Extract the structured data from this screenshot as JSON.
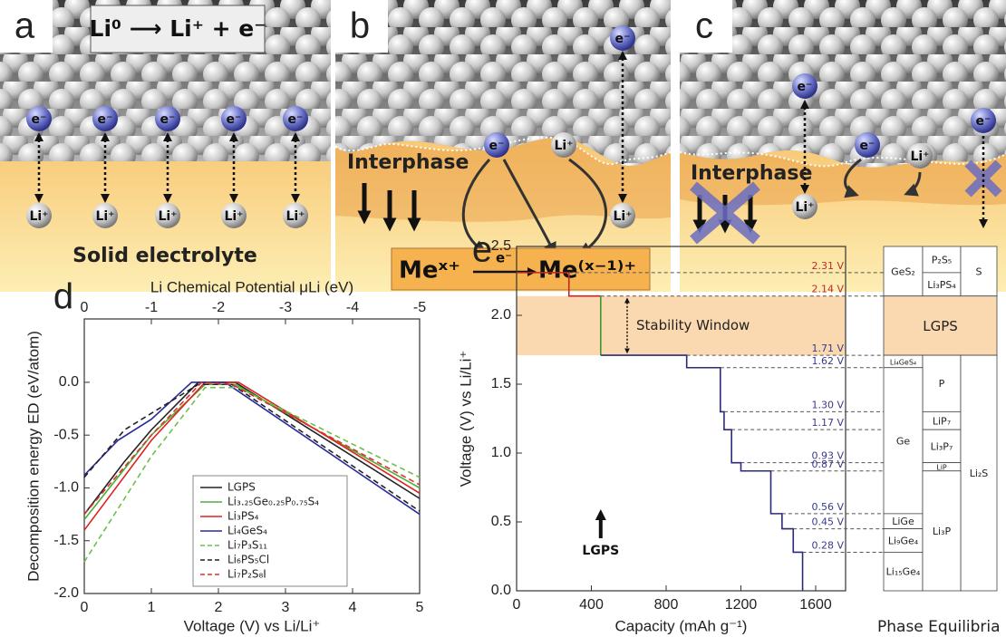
{
  "panels": [
    {
      "label": "a",
      "equation": "Li⁰ ⟶ Li⁺ + e⁻",
      "electron": "e⁻",
      "ion": "Li⁺",
      "electrolyte": "Solid electrolyte"
    },
    {
      "label": "b",
      "interphase": "Interphase",
      "electron": "e⁻",
      "ion": "Li⁺",
      "reactant": "Meˣ⁺",
      "over_arrow": "e⁻",
      "product": "Me⁽ˣ⁻¹⁾⁺"
    },
    {
      "label": "c",
      "interphase": "Interphase",
      "electron": "e⁻",
      "ion": "Li⁺"
    }
  ],
  "chart_data": [
    {
      "type": "line",
      "label": "d",
      "x_label": "Voltage (V) vs Li/Li⁺",
      "y_label": "Decomposition energy ED (eV/atom)",
      "x2_label": "Li Chemical Potential μLi (eV)",
      "xlim": [
        0,
        5
      ],
      "xticks": [
        0,
        1,
        2,
        3,
        4,
        5
      ],
      "x2lim": [
        0,
        -5
      ],
      "x2ticks": [
        0,
        -1,
        -2,
        -3,
        -4,
        -5
      ],
      "ylim": [
        -2.0,
        0.6
      ],
      "yticks": [
        {
          "value": -2.0,
          "label": "-2.0"
        },
        {
          "value": -1.5,
          "label": "-1.5"
        },
        {
          "value": -1.0,
          "label": "-1.0"
        },
        {
          "value": -0.5,
          "label": "-0.5"
        },
        {
          "value": 0,
          "label": "0.0"
        }
      ],
      "legend": "lower center",
      "series": [
        {
          "name": "LGPS",
          "color": "#222222",
          "dash": false,
          "x": [
            0,
            0.6,
            1.0,
            1.7,
            2.25,
            5
          ],
          "values": [
            -1.25,
            -0.75,
            -0.45,
            0,
            0,
            -1.1
          ]
        },
        {
          "name": "Li₃.₂₅Ge₀.₂₅P₀.₇₅S₄",
          "color": "#4caf3a",
          "dash": false,
          "x": [
            0,
            1.0,
            1.8,
            2.25,
            5
          ],
          "values": [
            -1.3,
            -0.5,
            -0.02,
            -0.02,
            -1.0
          ]
        },
        {
          "name": "Li₃PS₄",
          "color": "#e02020",
          "dash": false,
          "x": [
            0,
            1.0,
            1.8,
            2.3,
            5
          ],
          "values": [
            -1.4,
            -0.55,
            0,
            0,
            -1.05
          ]
        },
        {
          "name": "Li₄GeS₄",
          "color": "#2a2a9a",
          "dash": false,
          "x": [
            0,
            0.5,
            1.0,
            1.6,
            2.1,
            5
          ],
          "values": [
            -0.88,
            -0.55,
            -0.35,
            0,
            0,
            -1.25
          ]
        },
        {
          "name": "Li₇P₃S₁₁",
          "color": "#6cc04a",
          "dash": true,
          "x": [
            0,
            1.0,
            1.8,
            2.3,
            5
          ],
          "values": [
            -1.7,
            -0.7,
            -0.05,
            -0.05,
            -0.9
          ]
        },
        {
          "name": "Li₆PS₅Cl",
          "color": "#222222",
          "dash": true,
          "x": [
            0,
            0.6,
            1.7,
            2.2,
            5
          ],
          "values": [
            -0.9,
            -0.45,
            -0.02,
            -0.02,
            -1.22
          ]
        },
        {
          "name": "Li₇P₂S₈I",
          "color": "#e03030",
          "dash": true,
          "x": [
            0,
            1.0,
            1.75,
            2.2,
            5
          ],
          "values": [
            -1.25,
            -0.5,
            0,
            -0.02,
            -0.97
          ]
        }
      ]
    },
    {
      "type": "line",
      "label": "e",
      "x_label": "Capacity (mAh g⁻¹)",
      "y_label": "Voltage (V) vs Li/Li⁺",
      "xlim": [
        0,
        1760
      ],
      "xticks": [
        0,
        400,
        800,
        1200,
        1600
      ],
      "ylim": [
        0,
        2.5
      ],
      "yticks": [
        {
          "value": 0,
          "label": "0.0"
        },
        {
          "value": 0.5,
          "label": "0.5"
        },
        {
          "value": 1.0,
          "label": "1.0"
        },
        {
          "value": 1.5,
          "label": "1.5"
        },
        {
          "value": 2.0,
          "label": "2.0"
        },
        {
          "value": 2.5,
          "label": "2.5"
        }
      ],
      "series": [
        {
          "color": "#c0282a",
          "x": [
            0,
            280,
            280,
            450
          ],
          "values": [
            2.31,
            2.31,
            2.14,
            2.14
          ]
        },
        {
          "color": "#3a9a2a",
          "x": [
            450,
            450
          ],
          "values": [
            2.14,
            1.71
          ]
        },
        {
          "color": "#2a2a7a",
          "x": [
            450,
            910,
            910,
            1090,
            1090,
            1110,
            1110,
            1150,
            1150,
            1200,
            1200,
            1360,
            1360,
            1420,
            1420,
            1480,
            1480,
            1530,
            1530
          ],
          "values": [
            1.71,
            1.71,
            1.62,
            1.62,
            1.3,
            1.3,
            1.17,
            1.17,
            0.93,
            0.93,
            0.87,
            0.87,
            0.56,
            0.56,
            0.45,
            0.45,
            0.28,
            0.28,
            0
          ]
        }
      ],
      "levels": [
        {
          "value": 2.31,
          "label": "2.31 V",
          "color": "#c0282a"
        },
        {
          "value": 2.14,
          "label": "2.14 V",
          "color": "#c0282a"
        },
        {
          "value": 1.71,
          "label": "1.71 V",
          "color": "#3a3a8a"
        },
        {
          "value": 1.62,
          "label": "1.62 V",
          "color": "#3a3a8a"
        },
        {
          "value": 1.3,
          "label": "1.30 V",
          "color": "#3a3a8a"
        },
        {
          "value": 1.17,
          "label": "1.17 V",
          "color": "#3a3a8a"
        },
        {
          "value": 0.93,
          "label": "0.93 V",
          "color": "#3a3a8a"
        },
        {
          "value": 0.87,
          "label": "0.87 V",
          "color": "#3a3a8a"
        },
        {
          "value": 0.56,
          "label": "0.56 V",
          "color": "#3a3a8a"
        },
        {
          "value": 0.45,
          "label": "0.45 V",
          "color": "#3a3a8a"
        },
        {
          "value": 0.28,
          "label": "0.28 V",
          "color": "#3a3a8a"
        }
      ],
      "window": {
        "lower": 1.71,
        "upper": 2.14,
        "label": "Stability Window",
        "color": "#fbd9b0"
      },
      "marker": {
        "x": 450,
        "label": "LGPS"
      },
      "phase_equilibria": {
        "title": "Phase Equilibria",
        "cells": [
          "GeS₂",
          "P₂S₅",
          "Li₃PS₄",
          "S",
          "LGPS",
          "Li₄GeS₄",
          "P",
          "LiP₇",
          "Li₃P₇",
          "LiP",
          "Ge",
          "Li₂S",
          "LiGe",
          "Li₉Ge₄",
          "Li₁₅Ge₄",
          "Li₃P"
        ]
      }
    }
  ]
}
